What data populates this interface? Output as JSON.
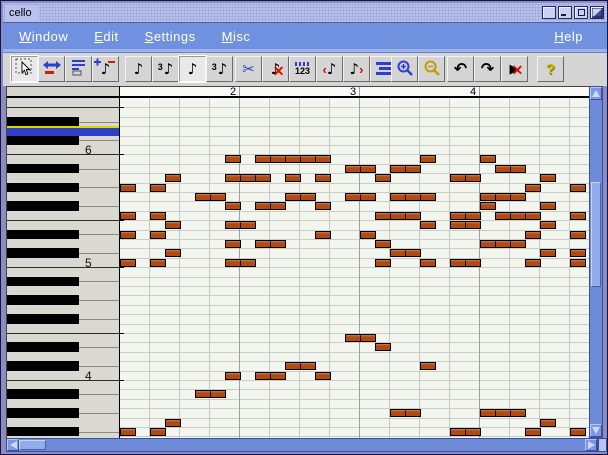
{
  "window": {
    "title": "cello",
    "controls": [
      "blank",
      "minimize",
      "maximize",
      "restore"
    ]
  },
  "menubar": {
    "items": [
      "Window",
      "Edit",
      "Settings",
      "Misc"
    ],
    "right_item": "Help"
  },
  "toolbar": {
    "groups": [
      {
        "items": [
          {
            "name": "select-tool",
            "icon": "select",
            "active": true
          },
          {
            "name": "move-event-tool",
            "icon": "move"
          },
          {
            "name": "event-lines-tool",
            "icon": "lines3"
          },
          {
            "name": "add-remove-note-tool",
            "icon": "notepm"
          }
        ]
      },
      {
        "items": [
          {
            "name": "eighth-note",
            "icon": "note8"
          },
          {
            "name": "eighth-triplet",
            "icon": "note8t"
          },
          {
            "name": "sixteenth-note",
            "icon": "note16",
            "active": true
          },
          {
            "name": "sixteenth-triplet",
            "icon": "note16t"
          }
        ]
      },
      {
        "items": [
          {
            "name": "cut",
            "icon": "cut"
          },
          {
            "name": "delete-note",
            "icon": "delnote"
          },
          {
            "name": "quantize",
            "icon": "quant"
          },
          {
            "name": "shift-note-left",
            "icon": "shiftl"
          },
          {
            "name": "shift-note-right",
            "icon": "shiftr"
          },
          {
            "name": "event-list",
            "icon": "evlist"
          }
        ]
      },
      {
        "items": [
          {
            "name": "zoom-in",
            "icon": "zoomin"
          },
          {
            "name": "zoom-out",
            "icon": "zoomout"
          }
        ]
      },
      {
        "items": [
          {
            "name": "undo",
            "icon": "undo"
          },
          {
            "name": "redo",
            "icon": "redo"
          },
          {
            "name": "abort",
            "icon": "abort"
          }
        ]
      },
      {
        "items": [
          {
            "name": "help",
            "icon": "help"
          }
        ]
      }
    ]
  },
  "ruler": {
    "bar_labels": [
      {
        "text": "2",
        "bar": 2
      },
      {
        "text": "3",
        "bar": 3
      },
      {
        "text": "4",
        "bar": 4
      }
    ]
  },
  "piano": {
    "top_pitch_midi": 89,
    "rows": 36,
    "highlight_pitch_midi": 86,
    "highlight_pitch": "D6",
    "octave_labels": [
      "6",
      "5",
      "4"
    ]
  },
  "notes": [
    [
      6,
      7,
      1
    ],
    [
      6,
      9,
      5
    ],
    [
      6,
      20,
      1
    ],
    [
      6,
      24,
      1
    ],
    [
      7,
      15,
      2
    ],
    [
      7,
      18,
      2
    ],
    [
      7,
      25,
      2
    ],
    [
      8,
      3,
      1
    ],
    [
      8,
      7,
      3
    ],
    [
      8,
      11,
      1
    ],
    [
      8,
      13,
      1
    ],
    [
      8,
      17,
      1
    ],
    [
      8,
      22,
      2
    ],
    [
      8,
      28,
      1
    ],
    [
      9,
      0,
      1
    ],
    [
      9,
      2,
      1
    ],
    [
      9,
      27,
      1
    ],
    [
      9,
      30,
      1
    ],
    [
      10,
      5,
      2
    ],
    [
      10,
      11,
      2
    ],
    [
      10,
      15,
      2
    ],
    [
      10,
      18,
      3
    ],
    [
      10,
      24,
      3
    ],
    [
      11,
      7,
      1
    ],
    [
      11,
      9,
      2
    ],
    [
      11,
      13,
      1
    ],
    [
      11,
      24,
      1
    ],
    [
      11,
      28,
      1
    ],
    [
      12,
      0,
      1
    ],
    [
      12,
      2,
      1
    ],
    [
      12,
      17,
      3
    ],
    [
      12,
      22,
      2
    ],
    [
      12,
      25,
      3
    ],
    [
      12,
      30,
      1
    ],
    [
      13,
      3,
      1
    ],
    [
      13,
      7,
      2
    ],
    [
      13,
      20,
      1
    ],
    [
      13,
      22,
      2
    ],
    [
      13,
      28,
      1
    ],
    [
      14,
      0,
      1
    ],
    [
      14,
      2,
      1
    ],
    [
      14,
      13,
      1
    ],
    [
      14,
      16,
      1
    ],
    [
      14,
      27,
      1
    ],
    [
      14,
      30,
      1
    ],
    [
      15,
      7,
      1
    ],
    [
      15,
      9,
      2
    ],
    [
      15,
      17,
      1
    ],
    [
      15,
      24,
      3
    ],
    [
      16,
      3,
      1
    ],
    [
      16,
      18,
      2
    ],
    [
      16,
      28,
      1
    ],
    [
      16,
      30,
      1
    ],
    [
      17,
      0,
      1
    ],
    [
      17,
      2,
      1
    ],
    [
      17,
      7,
      2
    ],
    [
      17,
      17,
      1
    ],
    [
      17,
      20,
      1
    ],
    [
      17,
      22,
      2
    ],
    [
      17,
      27,
      1
    ],
    [
      17,
      30,
      1
    ],
    [
      25,
      15,
      2
    ],
    [
      26,
      17,
      1
    ],
    [
      28,
      11,
      2
    ],
    [
      28,
      20,
      1
    ],
    [
      29,
      7,
      1
    ],
    [
      29,
      9,
      2
    ],
    [
      29,
      13,
      1
    ],
    [
      31,
      5,
      2
    ],
    [
      33,
      18,
      2
    ],
    [
      33,
      24,
      3
    ],
    [
      34,
      3,
      1
    ],
    [
      34,
      28,
      1
    ],
    [
      35,
      0,
      1
    ],
    [
      35,
      2,
      1
    ],
    [
      35,
      22,
      2
    ],
    [
      35,
      27,
      1
    ],
    [
      35,
      30,
      1
    ]
  ],
  "colors": {
    "note_fill": "#b04a12",
    "menubar": "#7090e0",
    "titlebar": "#b9c1ec",
    "toolbar": "#d5d5d5",
    "grid_bg": "#f3f6ef",
    "highlight_row": "#2e3ec8",
    "highlight_top_line": "#d8d800",
    "scroll_track": "#6e8bd9",
    "scroll_thumb": "#92adec"
  }
}
